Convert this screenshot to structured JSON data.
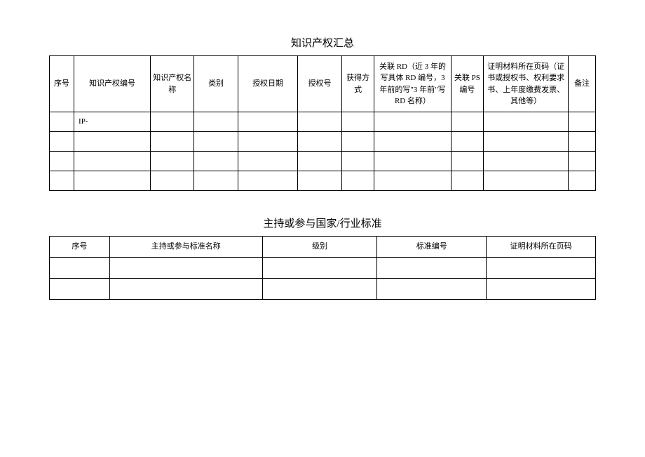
{
  "table1": {
    "title": "知识产权汇总",
    "headers": {
      "h1": "序号",
      "h2": "知识产权编号",
      "h3": "知识产权名称",
      "h4": "类别",
      "h5": "授权日期",
      "h6": "授权号",
      "h7": "获得方式",
      "h8": "关联 RD（近 3 年的写具体 RD 编号，3 年前的写\"3 年前\"写 RD 名称）",
      "h9": "关联 PS 编号",
      "h10": "证明材料所在页码（证书或授权书、权利要求书、上年度缴费发票、其他等）",
      "h11": "备注"
    },
    "rows": [
      {
        "c1": "",
        "c2": "IP-",
        "c3": "",
        "c4": "",
        "c5": "",
        "c6": "",
        "c7": "",
        "c8": "",
        "c9": "",
        "c10": "",
        "c11": ""
      },
      {
        "c1": "",
        "c2": "",
        "c3": "",
        "c4": "",
        "c5": "",
        "c6": "",
        "c7": "",
        "c8": "",
        "c9": "",
        "c10": "",
        "c11": ""
      },
      {
        "c1": "",
        "c2": "",
        "c3": "",
        "c4": "",
        "c5": "",
        "c6": "",
        "c7": "",
        "c8": "",
        "c9": "",
        "c10": "",
        "c11": ""
      },
      {
        "c1": "",
        "c2": "",
        "c3": "",
        "c4": "",
        "c5": "",
        "c6": "",
        "c7": "",
        "c8": "",
        "c9": "",
        "c10": "",
        "c11": ""
      }
    ]
  },
  "table2": {
    "title": "主持或参与国家/行业标准",
    "headers": {
      "ha": "序号",
      "hb": "主持或参与标准名称",
      "hc": "级别",
      "hd": "标准编号",
      "he": "证明材料所在页码"
    },
    "rows": [
      {
        "ca": "",
        "cb": "",
        "cc": "",
        "cd": "",
        "ce": ""
      },
      {
        "ca": "",
        "cb": "",
        "cc": "",
        "cd": "",
        "ce": ""
      }
    ]
  }
}
